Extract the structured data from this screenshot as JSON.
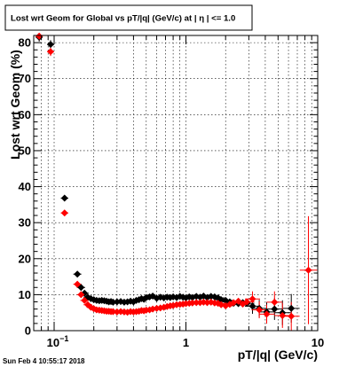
{
  "window": {
    "title": "Lost wrt Geom for Global vs pT/|q| (GeV/c) at |  η | <= 1.0",
    "timestamp": "Sun Feb  4 10:55:17 2018"
  },
  "chart_data": {
    "type": "scatter",
    "title": "Lost wrt Geom for Global vs pT/|q| (GeV/c) at |  η | <= 1.0",
    "xlabel": "pT/|q| (GeV/c)",
    "ylabel": "Lost wrt Geom (%)",
    "xscale": "log",
    "xlim": [
      0.07,
      10
    ],
    "ylim": [
      0,
      82
    ],
    "grid": true,
    "legend": "none",
    "x_tick_labels": [
      {
        "value": 0.1,
        "label": "10",
        "sup": "−1"
      },
      {
        "value": 1,
        "label": "1"
      },
      {
        "value": 10,
        "label": "10"
      }
    ],
    "y_ticks": [
      0,
      10,
      20,
      30,
      40,
      50,
      60,
      70,
      80
    ],
    "series": [
      {
        "color": "#000000",
        "points": [
          {
            "x": 0.077,
            "y": 81.5
          },
          {
            "x": 0.094,
            "y": 79.5
          },
          {
            "x": 0.12,
            "y": 36.8
          },
          {
            "x": 0.15,
            "y": 15.7
          },
          {
            "x": 0.16,
            "y": 12.0
          },
          {
            "x": 0.17,
            "y": 10.4
          },
          {
            "x": 0.18,
            "y": 9.3
          },
          {
            "x": 0.19,
            "y": 8.9
          },
          {
            "x": 0.2,
            "y": 8.6
          },
          {
            "x": 0.21,
            "y": 8.4
          },
          {
            "x": 0.22,
            "y": 8.3
          },
          {
            "x": 0.23,
            "y": 8.4
          },
          {
            "x": 0.24,
            "y": 8.3
          },
          {
            "x": 0.25,
            "y": 8.2
          },
          {
            "x": 0.26,
            "y": 8.0
          },
          {
            "x": 0.27,
            "y": 8.1
          },
          {
            "x": 0.28,
            "y": 7.9
          },
          {
            "x": 0.3,
            "y": 8.0
          },
          {
            "x": 0.32,
            "y": 8.1
          },
          {
            "x": 0.34,
            "y": 7.9
          },
          {
            "x": 0.36,
            "y": 8.0
          },
          {
            "x": 0.38,
            "y": 8.2
          },
          {
            "x": 0.4,
            "y": 8.0
          },
          {
            "x": 0.42,
            "y": 8.4
          },
          {
            "x": 0.44,
            "y": 8.6
          },
          {
            "x": 0.46,
            "y": 8.9
          },
          {
            "x": 0.48,
            "y": 8.7
          },
          {
            "x": 0.5,
            "y": 9.2
          },
          {
            "x": 0.53,
            "y": 9.4
          },
          {
            "x": 0.56,
            "y": 9.6
          },
          {
            "x": 0.6,
            "y": 9.0
          },
          {
            "x": 0.64,
            "y": 9.3
          },
          {
            "x": 0.68,
            "y": 9.1
          },
          {
            "x": 0.72,
            "y": 9.3
          },
          {
            "x": 0.76,
            "y": 9.2
          },
          {
            "x": 0.8,
            "y": 9.4
          },
          {
            "x": 0.85,
            "y": 9.2
          },
          {
            "x": 0.9,
            "y": 9.5
          },
          {
            "x": 0.95,
            "y": 9.3
          },
          {
            "x": 1.0,
            "y": 9.1
          },
          {
            "x": 1.06,
            "y": 9.4
          },
          {
            "x": 1.12,
            "y": 9.2
          },
          {
            "x": 1.2,
            "y": 9.5
          },
          {
            "x": 1.28,
            "y": 9.3
          },
          {
            "x": 1.36,
            "y": 9.6
          },
          {
            "x": 1.45,
            "y": 9.2
          },
          {
            "x": 1.55,
            "y": 9.5
          },
          {
            "x": 1.65,
            "y": 9.4
          },
          {
            "x": 1.75,
            "y": 9.1
          },
          {
            "x": 1.85,
            "y": 8.6
          },
          {
            "x": 2.0,
            "y": 8.4
          },
          {
            "x": 2.15,
            "y": 8.0
          },
          {
            "x": 2.3,
            "y": 7.6
          },
          {
            "x": 2.5,
            "y": 7.5
          },
          {
            "x": 2.7,
            "y": 7.8
          },
          {
            "x": 2.9,
            "y": 7.6
          },
          {
            "x": 3.2,
            "y": 6.8
          },
          {
            "x": 3.6,
            "y": 6.2
          },
          {
            "x": 4.1,
            "y": 5.2
          },
          {
            "x": 4.7,
            "y": 6.0
          },
          {
            "x": 5.4,
            "y": 5.0
          },
          {
            "x": 6.3,
            "y": 6.2
          }
        ]
      },
      {
        "color": "#ff0000",
        "points": [
          {
            "x": 0.077,
            "y": 81.8
          },
          {
            "x": 0.094,
            "y": 77.5
          },
          {
            "x": 0.12,
            "y": 32.7
          },
          {
            "x": 0.15,
            "y": 12.9
          },
          {
            "x": 0.16,
            "y": 10.0
          },
          {
            "x": 0.17,
            "y": 8.4
          },
          {
            "x": 0.18,
            "y": 7.2
          },
          {
            "x": 0.19,
            "y": 6.5
          },
          {
            "x": 0.2,
            "y": 6.1
          },
          {
            "x": 0.21,
            "y": 5.8
          },
          {
            "x": 0.22,
            "y": 5.7
          },
          {
            "x": 0.23,
            "y": 5.6
          },
          {
            "x": 0.24,
            "y": 5.5
          },
          {
            "x": 0.25,
            "y": 5.4
          },
          {
            "x": 0.26,
            "y": 5.4
          },
          {
            "x": 0.27,
            "y": 5.3
          },
          {
            "x": 0.28,
            "y": 5.3
          },
          {
            "x": 0.3,
            "y": 5.2
          },
          {
            "x": 0.32,
            "y": 5.3
          },
          {
            "x": 0.34,
            "y": 5.2
          },
          {
            "x": 0.36,
            "y": 5.1
          },
          {
            "x": 0.38,
            "y": 5.3
          },
          {
            "x": 0.4,
            "y": 5.2
          },
          {
            "x": 0.42,
            "y": 5.3
          },
          {
            "x": 0.44,
            "y": 5.4
          },
          {
            "x": 0.46,
            "y": 5.6
          },
          {
            "x": 0.48,
            "y": 5.5
          },
          {
            "x": 0.5,
            "y": 5.7
          },
          {
            "x": 0.53,
            "y": 5.8
          },
          {
            "x": 0.56,
            "y": 6.0
          },
          {
            "x": 0.6,
            "y": 6.2
          },
          {
            "x": 0.64,
            "y": 6.3
          },
          {
            "x": 0.68,
            "y": 6.5
          },
          {
            "x": 0.72,
            "y": 6.7
          },
          {
            "x": 0.76,
            "y": 6.9
          },
          {
            "x": 0.8,
            "y": 7.0
          },
          {
            "x": 0.85,
            "y": 7.2
          },
          {
            "x": 0.9,
            "y": 7.3
          },
          {
            "x": 0.95,
            "y": 7.4
          },
          {
            "x": 1.0,
            "y": 7.5
          },
          {
            "x": 1.06,
            "y": 7.6
          },
          {
            "x": 1.12,
            "y": 7.7
          },
          {
            "x": 1.2,
            "y": 7.8
          },
          {
            "x": 1.28,
            "y": 7.8
          },
          {
            "x": 1.36,
            "y": 7.9
          },
          {
            "x": 1.45,
            "y": 7.8
          },
          {
            "x": 1.55,
            "y": 7.9
          },
          {
            "x": 1.65,
            "y": 7.7
          },
          {
            "x": 1.75,
            "y": 7.6
          },
          {
            "x": 1.85,
            "y": 7.2
          },
          {
            "x": 2.0,
            "y": 6.9
          },
          {
            "x": 2.15,
            "y": 7.3
          },
          {
            "x": 2.3,
            "y": 7.8
          },
          {
            "x": 2.5,
            "y": 8.2
          },
          {
            "x": 2.7,
            "y": 7.4
          },
          {
            "x": 2.9,
            "y": 8.0
          },
          {
            "x": 3.2,
            "y": 8.8
          },
          {
            "x": 3.6,
            "y": 5.8
          },
          {
            "x": 4.1,
            "y": 4.6
          },
          {
            "x": 4.7,
            "y": 7.9
          },
          {
            "x": 5.4,
            "y": 4.2
          },
          {
            "x": 6.3,
            "y": 4.0
          },
          {
            "x": 8.5,
            "y": 16.8
          }
        ]
      }
    ]
  }
}
